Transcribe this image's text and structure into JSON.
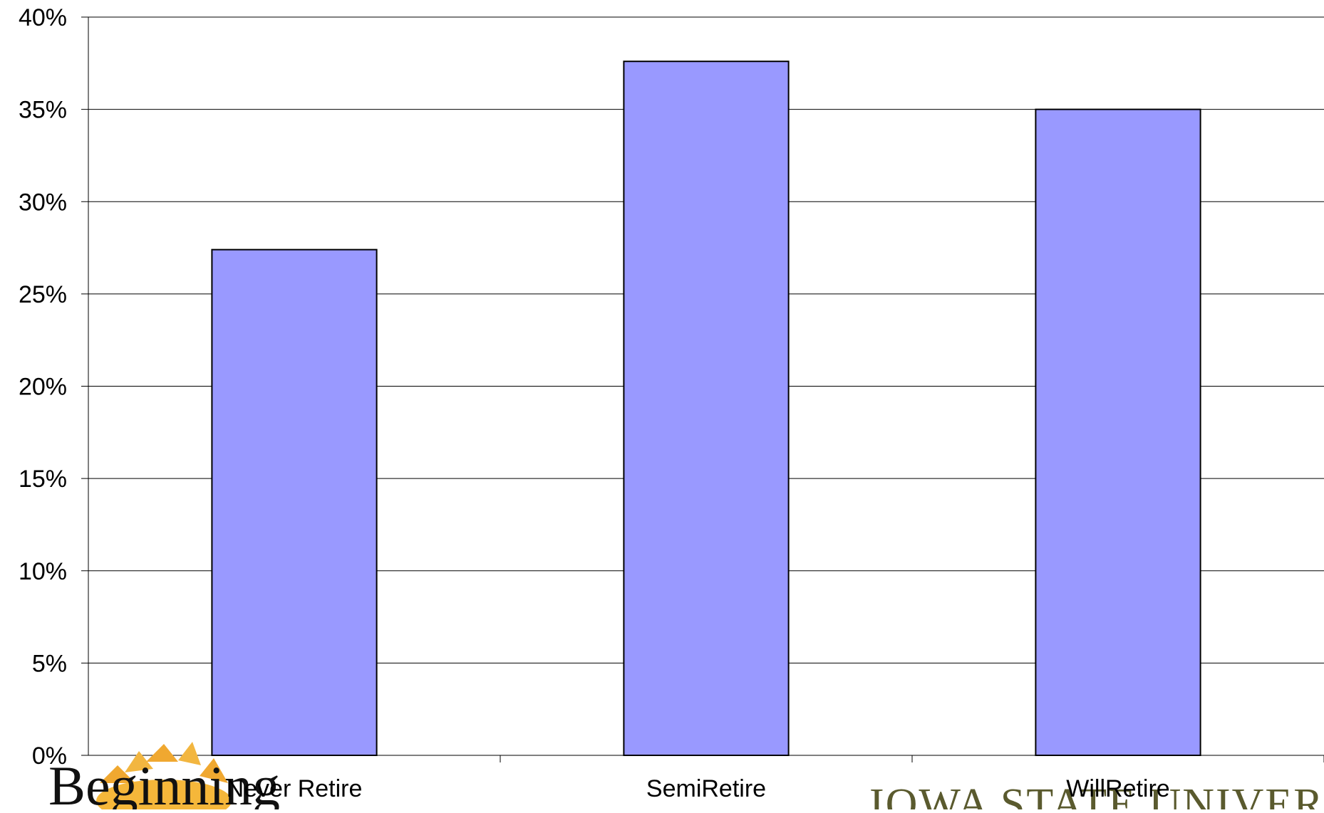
{
  "chart_data": {
    "type": "bar",
    "categories": [
      "Never Retire",
      "SemiRetire",
      "WillRetire"
    ],
    "values": [
      27.4,
      37.6,
      35.0
    ],
    "value_unit": "%",
    "ylim": [
      0,
      40
    ],
    "y_ticks": [
      "0%",
      "5%",
      "10%",
      "15%",
      "20%",
      "25%",
      "30%",
      "35%",
      "40%"
    ],
    "title": "",
    "xlabel": "",
    "ylabel": "",
    "grid": true,
    "colors": {
      "bar_fill": "#9999ff",
      "bar_stroke": "#000000",
      "grid": "#000000",
      "axis": "#000000"
    }
  },
  "logos": {
    "left_text": "Beginning",
    "right_text": "IOWA STATE UNIVERSITY"
  }
}
